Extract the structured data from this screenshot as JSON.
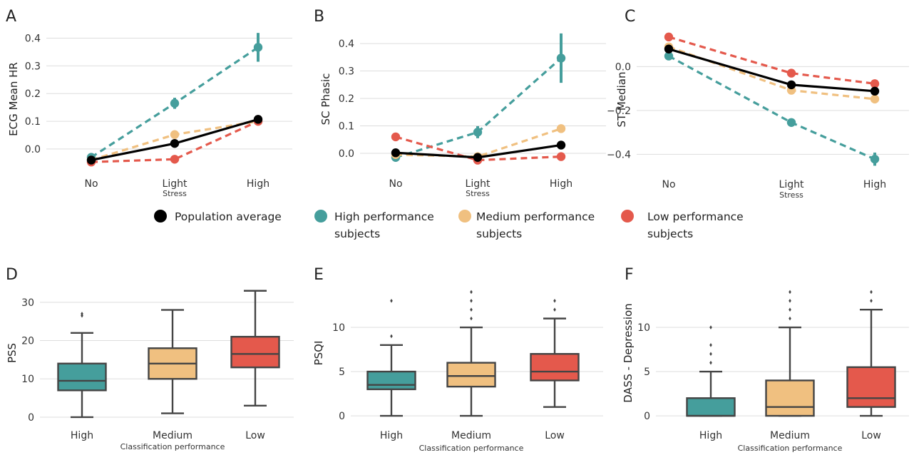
{
  "colors": {
    "population": "#000000",
    "high": "#459e9c",
    "medium": "#f0c080",
    "low": "#e4594c",
    "grid": "#dddddd",
    "box_edge": "#444444"
  },
  "legend": [
    {
      "key": "population",
      "lines": [
        "Population average"
      ]
    },
    {
      "key": "high",
      "lines": [
        "High performance",
        "subjects"
      ]
    },
    {
      "key": "medium",
      "lines": [
        "Medium performance",
        "subjects"
      ]
    },
    {
      "key": "low",
      "lines": [
        "Low performance",
        "subjects"
      ]
    }
  ],
  "chart_data": [
    {
      "panel": "A",
      "type": "line",
      "categories": [
        "No",
        "Light",
        "High"
      ],
      "xlabel": "Stress",
      "ylabel": "ECG Mean HR",
      "ylim": [
        -0.08,
        0.44
      ],
      "yticks": [
        0.0,
        0.1,
        0.2,
        0.3,
        0.4
      ],
      "ytick_labels": [
        "0.0",
        "0.1",
        "0.2",
        "0.3",
        "0.4"
      ],
      "grid": true,
      "series": [
        {
          "key": "high",
          "values": [
            -0.03,
            0.165,
            0.367
          ],
          "err": [
            0.01,
            0.02,
            0.052
          ]
        },
        {
          "key": "medium",
          "values": [
            -0.04,
            0.052,
            0.1
          ],
          "err": [
            0.0,
            0.0,
            0.0
          ]
        },
        {
          "key": "low",
          "values": [
            -0.047,
            -0.037,
            0.1
          ],
          "err": [
            0.0,
            0.0,
            0.0
          ]
        },
        {
          "key": "population",
          "values": [
            -0.04,
            0.02,
            0.107
          ],
          "err": [
            0.0,
            0.0,
            0.0
          ]
        }
      ]
    },
    {
      "panel": "B",
      "type": "line",
      "categories": [
        "No",
        "Light",
        "High"
      ],
      "xlabel": "Stress",
      "ylabel": "SC Phasic",
      "ylim": [
        -0.065,
        0.46
      ],
      "yticks": [
        0.0,
        0.1,
        0.2,
        0.3,
        0.4
      ],
      "ytick_labels": [
        "0.0",
        "0.1",
        "0.2",
        "0.3",
        "0.4"
      ],
      "grid": true,
      "series": [
        {
          "key": "high",
          "values": [
            -0.015,
            0.077,
            0.347
          ],
          "err": [
            0.005,
            0.022,
            0.09
          ]
        },
        {
          "key": "medium",
          "values": [
            -0.005,
            -0.012,
            0.09
          ],
          "err": [
            0.0,
            0.0,
            0.0
          ]
        },
        {
          "key": "low",
          "values": [
            0.06,
            -0.025,
            -0.012
          ],
          "err": [
            0.0,
            0.0,
            0.0
          ]
        },
        {
          "key": "population",
          "values": [
            0.002,
            -0.015,
            0.03
          ],
          "err": [
            0.0,
            0.0,
            0.0
          ]
        }
      ]
    },
    {
      "panel": "C",
      "type": "line",
      "categories": [
        "No",
        "Light",
        "High"
      ],
      "xlabel": "Stress",
      "ylabel": "ST Median",
      "ylim": [
        -0.48,
        0.18
      ],
      "yticks": [
        0.0,
        -0.2,
        -0.4
      ],
      "ytick_labels": [
        "0.0",
        "−0.2",
        "−0.4"
      ],
      "grid": true,
      "series": [
        {
          "key": "high",
          "values": [
            0.048,
            -0.255,
            -0.422
          ],
          "err": [
            0.008,
            0.01,
            0.03
          ]
        },
        {
          "key": "medium",
          "values": [
            0.09,
            -0.108,
            -0.148
          ],
          "err": [
            0.0,
            0.0,
            0.0
          ]
        },
        {
          "key": "low",
          "values": [
            0.135,
            -0.03,
            -0.078
          ],
          "err": [
            0.0,
            0.0,
            0.0
          ]
        },
        {
          "key": "population",
          "values": [
            0.08,
            -0.083,
            -0.112
          ],
          "err": [
            0.0,
            0.0,
            0.0
          ]
        }
      ]
    },
    {
      "panel": "D",
      "type": "box",
      "categories": [
        "High",
        "Medium",
        "Low"
      ],
      "xlabel": "Classification performance",
      "ylabel": "PSS",
      "ylim": [
        -1.5,
        35
      ],
      "yticks": [
        0,
        10,
        20,
        30
      ],
      "ytick_labels": [
        "0",
        "10",
        "20",
        "30"
      ],
      "grid": true,
      "boxes": [
        {
          "key": "high",
          "whislo": 0,
          "q1": 7,
          "med": 9.5,
          "q3": 14,
          "whishi": 22,
          "fliers": [
            26.5,
            27
          ]
        },
        {
          "key": "medium",
          "whislo": 1,
          "q1": 10,
          "med": 14,
          "q3": 18,
          "whishi": 28,
          "fliers": []
        },
        {
          "key": "low",
          "whislo": 3,
          "q1": 13,
          "med": 16.5,
          "q3": 21,
          "whishi": 33,
          "fliers": []
        }
      ]
    },
    {
      "panel": "E",
      "type": "box",
      "categories": [
        "High",
        "Medium",
        "Low"
      ],
      "xlabel": "Classification performance",
      "ylabel": "PSQI",
      "ylim": [
        -0.8,
        15
      ],
      "yticks": [
        0,
        5,
        10
      ],
      "ytick_labels": [
        "0",
        "5",
        "10"
      ],
      "grid": true,
      "boxes": [
        {
          "key": "high",
          "whislo": 0,
          "q1": 3,
          "med": 3.5,
          "q3": 5,
          "whishi": 8,
          "fliers": [
            9,
            13
          ]
        },
        {
          "key": "medium",
          "whislo": 0,
          "q1": 3.3,
          "med": 4.5,
          "q3": 6,
          "whishi": 10,
          "fliers": [
            11,
            12,
            13,
            14
          ]
        },
        {
          "key": "low",
          "whislo": 1,
          "q1": 4,
          "med": 5,
          "q3": 7,
          "whishi": 11,
          "fliers": [
            12,
            13
          ]
        }
      ]
    },
    {
      "panel": "F",
      "type": "box",
      "categories": [
        "High",
        "Medium",
        "Low"
      ],
      "xlabel": "Classification performance",
      "ylabel": "DASS - Depression",
      "ylim": [
        -0.8,
        15
      ],
      "yticks": [
        0,
        5,
        10
      ],
      "ytick_labels": [
        "0",
        "5",
        "10"
      ],
      "grid": true,
      "boxes": [
        {
          "key": "high",
          "whislo": 0,
          "q1": 0,
          "med": 0,
          "q3": 2,
          "whishi": 5,
          "fliers": [
            6,
            7,
            8,
            10
          ]
        },
        {
          "key": "medium",
          "whislo": 0,
          "q1": 0,
          "med": 1,
          "q3": 4,
          "whishi": 10,
          "fliers": [
            11,
            12,
            13,
            14
          ]
        },
        {
          "key": "low",
          "whislo": 0,
          "q1": 1,
          "med": 2,
          "q3": 5.5,
          "whishi": 12,
          "fliers": [
            13,
            14
          ]
        }
      ]
    }
  ]
}
